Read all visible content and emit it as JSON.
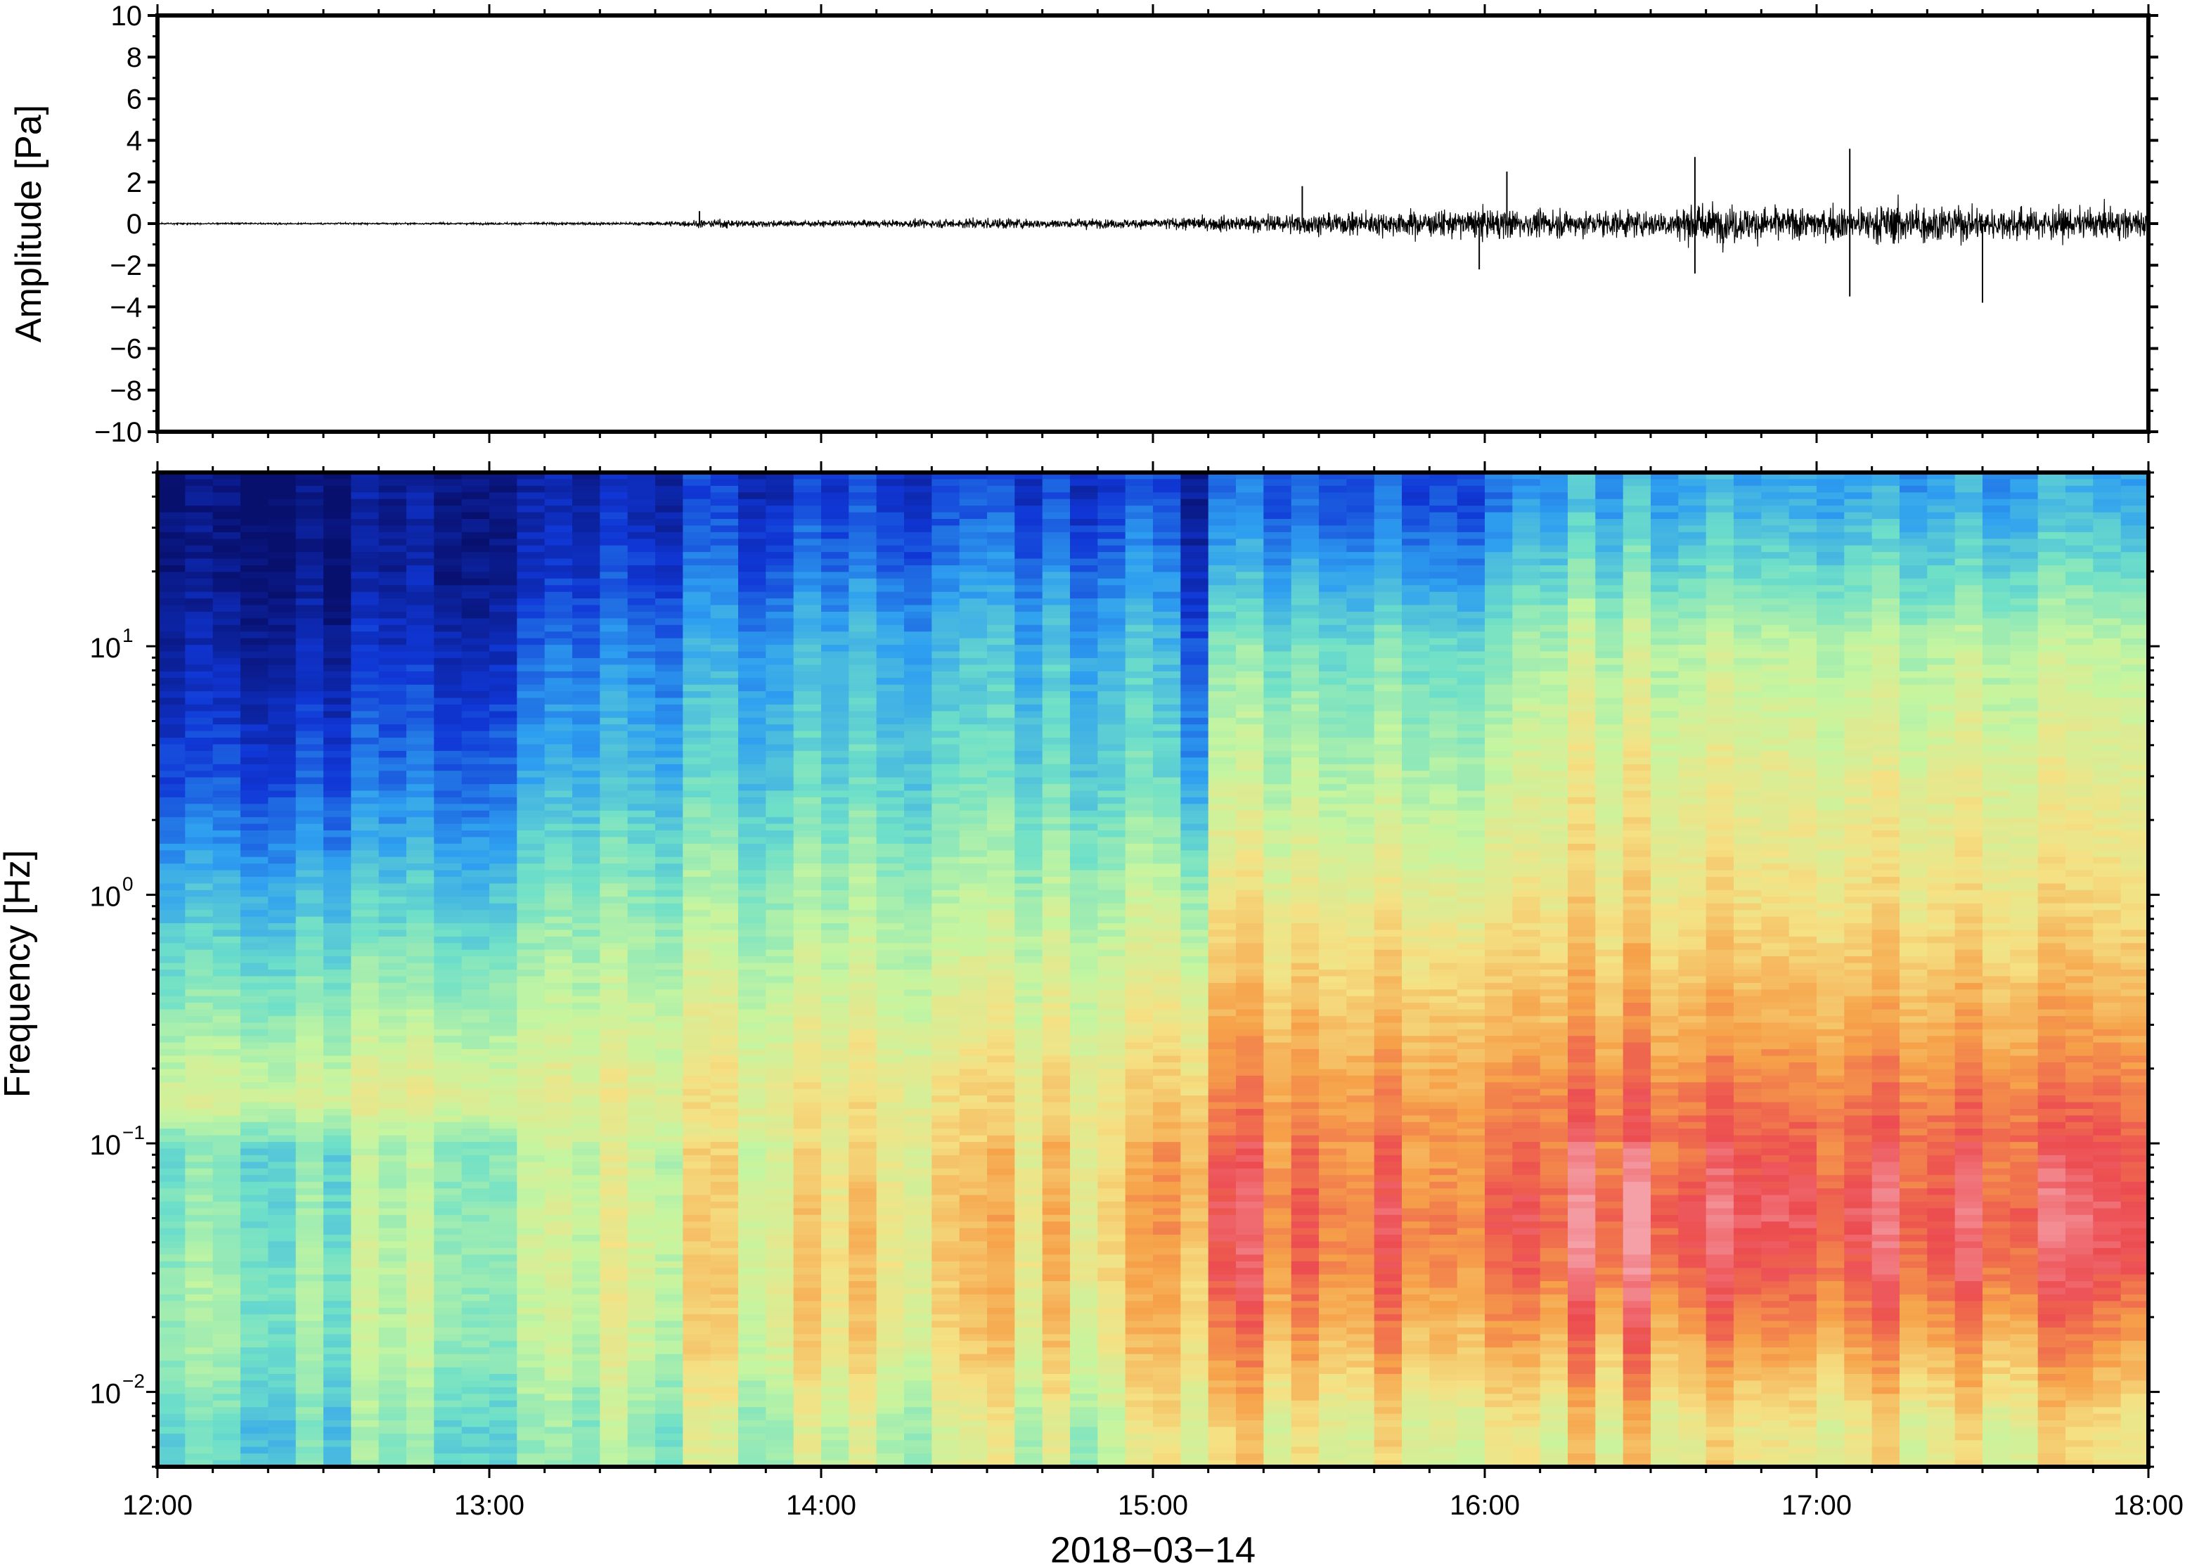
{
  "chart_data": [
    {
      "type": "line",
      "panel": "waveform",
      "ylabel": "Amplitude [Pa]",
      "ylim": [
        -10,
        10
      ],
      "yticks": [
        10,
        8,
        6,
        4,
        2,
        0,
        -2,
        -4,
        -6,
        -8,
        -10
      ],
      "ytick_labels": [
        "10",
        "8",
        "6",
        "4",
        "2",
        "0",
        "−2",
        "−4",
        "−6",
        "−8",
        "−10"
      ],
      "xlim": [
        "12:00",
        "18:00"
      ],
      "color": "#000000",
      "envelope": {
        "time": [
          "12:00",
          "12:30",
          "13:00",
          "13:30",
          "13:40",
          "14:00",
          "14:20",
          "14:30",
          "14:45",
          "15:00",
          "15:10",
          "15:30",
          "15:45",
          "16:00",
          "16:15",
          "16:30",
          "16:40",
          "17:00",
          "17:15",
          "17:30",
          "18:00"
        ],
        "peak_amplitude": [
          0.1,
          0.1,
          0.12,
          0.2,
          0.5,
          0.35,
          0.5,
          0.7,
          0.55,
          0.6,
          0.9,
          1.3,
          1.5,
          1.8,
          1.6,
          1.6,
          2.4,
          1.9,
          2.6,
          2.0,
          1.8
        ]
      },
      "spikes": [
        {
          "time": "13:38",
          "value": 0.6
        },
        {
          "time": "15:27",
          "value": 1.8
        },
        {
          "time": "15:59",
          "value": -2.2
        },
        {
          "time": "16:04",
          "value": 2.5
        },
        {
          "time": "16:38",
          "value": 3.2
        },
        {
          "time": "16:38",
          "value": -2.4
        },
        {
          "time": "17:06",
          "value": 3.6
        },
        {
          "time": "17:06",
          "value": -3.5
        },
        {
          "time": "17:30",
          "value": -3.8
        }
      ]
    },
    {
      "type": "heatmap",
      "panel": "spectrogram",
      "ylabel": "Frequency [Hz]",
      "yscale": "log",
      "ylim": [
        0.005,
        50
      ],
      "ytick_labels": [
        {
          "base": "10",
          "exp": "1",
          "value": 10
        },
        {
          "base": "10",
          "exp": "0",
          "value": 1
        },
        {
          "base": "10",
          "exp": "−1",
          "value": 0.1
        },
        {
          "base": "10",
          "exp": "−2",
          "value": 0.01
        }
      ],
      "xlabel": "2018−03−14",
      "xticks": [
        "12:00",
        "13:00",
        "14:00",
        "15:00",
        "16:00",
        "17:00",
        "18:00"
      ],
      "colormap": "rainbow",
      "colormap_colors": [
        "#08106e",
        "#1037d6",
        "#2e9ff0",
        "#6fe0c8",
        "#c5f5a0",
        "#f5e184",
        "#f6a24a",
        "#ec4c50",
        "#f5a0a8"
      ],
      "level_grid": {
        "note": "relative power level (0 = dark blue, 1 = pink) at time columns x frequency rows",
        "times": [
          "12:00",
          "13:00",
          "13:10",
          "14:00",
          "15:00",
          "15:08",
          "15:10",
          "16:00",
          "16:10",
          "17:00",
          "18:00"
        ],
        "freqs": [
          40,
          20,
          10,
          3,
          1,
          0.3,
          0.15,
          0.1,
          0.05,
          0.03,
          0.015,
          0.007
        ],
        "levels": [
          [
            0.02,
            0.03,
            0.07,
            0.15,
            0.3,
            0.45,
            0.55,
            0.4,
            0.42,
            0.45,
            0.45,
            0.38
          ],
          [
            0.04,
            0.05,
            0.1,
            0.2,
            0.34,
            0.48,
            0.58,
            0.46,
            0.47,
            0.48,
            0.47,
            0.4
          ],
          [
            0.08,
            0.12,
            0.2,
            0.3,
            0.42,
            0.53,
            0.58,
            0.52,
            0.54,
            0.54,
            0.52,
            0.45
          ],
          [
            0.12,
            0.2,
            0.28,
            0.35,
            0.45,
            0.55,
            0.6,
            0.6,
            0.62,
            0.63,
            0.6,
            0.5
          ],
          [
            0.13,
            0.22,
            0.3,
            0.36,
            0.48,
            0.57,
            0.63,
            0.66,
            0.67,
            0.66,
            0.62,
            0.52
          ],
          [
            0.05,
            0.08,
            0.16,
            0.25,
            0.45,
            0.58,
            0.66,
            0.72,
            0.72,
            0.68,
            0.64,
            0.55
          ],
          [
            0.18,
            0.28,
            0.4,
            0.5,
            0.6,
            0.72,
            0.78,
            0.82,
            0.86,
            0.84,
            0.75,
            0.62
          ],
          [
            0.18,
            0.28,
            0.4,
            0.5,
            0.6,
            0.72,
            0.78,
            0.82,
            0.87,
            0.84,
            0.76,
            0.62
          ],
          [
            0.28,
            0.38,
            0.5,
            0.58,
            0.63,
            0.74,
            0.82,
            0.86,
            0.92,
            0.88,
            0.76,
            0.62
          ],
          [
            0.28,
            0.38,
            0.5,
            0.58,
            0.63,
            0.74,
            0.82,
            0.86,
            0.92,
            0.88,
            0.76,
            0.62
          ],
          [
            0.28,
            0.38,
            0.5,
            0.58,
            0.63,
            0.74,
            0.82,
            0.86,
            0.92,
            0.88,
            0.76,
            0.62
          ]
        ]
      }
    }
  ]
}
